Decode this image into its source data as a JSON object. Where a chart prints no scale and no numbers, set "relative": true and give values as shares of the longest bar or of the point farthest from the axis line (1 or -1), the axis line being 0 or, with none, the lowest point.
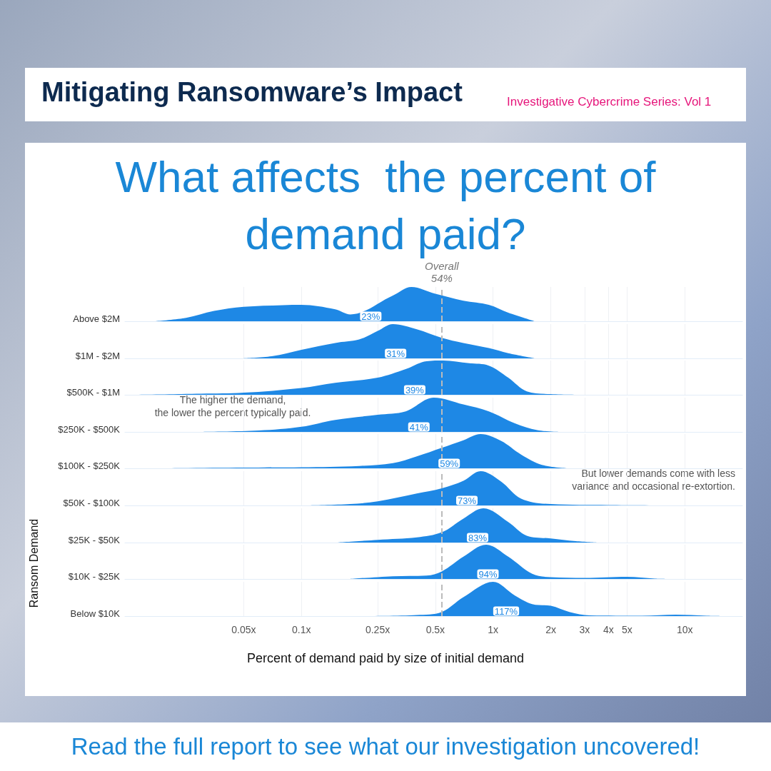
{
  "chart_data": [
    {
      "type": "area",
      "relative": true,
      "title": "Mitigating Ransomware’s Impact",
      "subtitle": "Investigative Cybercrime Series: Vol 1",
      "ylabel": "Above $2M",
      "xlim": [
        0.012,
        20
      ],
      "log": "x",
      "grid": "x",
      "tick_labels": false,
      "color": "#1e88e5",
      "x": [
        0.017,
        0.025,
        0.035,
        0.05,
        0.08,
        0.1,
        0.15,
        0.18,
        0.3,
        0.375,
        0.5,
        0.7,
        0.95,
        1.2,
        1.65
      ],
      "values": [
        0,
        0.1,
        0.3,
        0.42,
        0.47,
        0.48,
        0.35,
        0.2,
        0.75,
        1,
        0.8,
        0.6,
        0.48,
        0.25,
        0
      ],
      "ref_lines": [
        {
          "axis": "x",
          "value": 0.54,
          "label": "Overall\n54%",
          "color": "#bbbbbb",
          "line_style": "dashed"
        }
      ],
      "annotations": [
        "What affects  the percent of demand paid?",
        {
          "text": "23%",
          "x": 0.23,
          "y": 0
        }
      ],
      "xticks": [
        {
          "value": 0.05,
          "label": null
        },
        {
          "value": 0.1,
          "label": null
        },
        {
          "value": 0.25,
          "label": null
        },
        {
          "value": 0.5,
          "label": null
        },
        {
          "value": 1,
          "label": null
        },
        {
          "value": 2,
          "label": null
        },
        {
          "value": 3,
          "label": null
        },
        {
          "value": 4,
          "label": null
        },
        {
          "value": 5,
          "label": null
        },
        {
          "value": 10,
          "label": null
        }
      ]
    },
    {
      "type": "area",
      "relative": true,
      "ylabel": "$1M - $2M",
      "xlim": [
        0.012,
        20
      ],
      "log": "x",
      "grid": "x",
      "tick_labels": false,
      "color": "#1e88e5",
      "x": [
        0.05,
        0.07,
        0.1,
        0.15,
        0.2,
        0.25,
        0.3,
        0.4,
        0.54,
        0.7,
        0.95,
        1.2,
        1.65
      ],
      "values": [
        0,
        0.06,
        0.25,
        0.45,
        0.55,
        0.8,
        1,
        0.85,
        0.6,
        0.45,
        0.3,
        0.15,
        0
      ],
      "ref_lines": [
        {
          "axis": "x",
          "value": 0.54,
          "color": "#bbbbbb",
          "line_style": "dashed"
        }
      ],
      "annotations": [
        {
          "text": "31%",
          "x": 0.31,
          "y": 0
        }
      ],
      "xticks": [
        {
          "value": 0.05,
          "label": null
        },
        {
          "value": 0.1,
          "label": null
        },
        {
          "value": 0.25,
          "label": null
        },
        {
          "value": 0.5,
          "label": null
        },
        {
          "value": 1,
          "label": null
        },
        {
          "value": 2,
          "label": null
        },
        {
          "value": 3,
          "label": null
        },
        {
          "value": 4,
          "label": null
        },
        {
          "value": 5,
          "label": null
        },
        {
          "value": 10,
          "label": null
        }
      ]
    },
    {
      "type": "area",
      "relative": true,
      "ylabel": "$500K - $1M",
      "xlim": [
        0.012,
        20
      ],
      "log": "x",
      "grid": "x",
      "tick_labels": false,
      "color": "#1e88e5",
      "x": [
        0.013,
        0.03,
        0.05,
        0.1,
        0.15,
        0.25,
        0.35,
        0.45,
        0.55,
        0.75,
        0.95,
        1.2,
        1.5,
        2,
        3
      ],
      "values": [
        0,
        0.03,
        0.06,
        0.2,
        0.35,
        0.5,
        0.75,
        0.98,
        1,
        0.92,
        0.85,
        0.5,
        0.1,
        0.02,
        0
      ],
      "ref_lines": [
        {
          "axis": "x",
          "value": 0.54,
          "color": "#bbbbbb",
          "line_style": "dashed"
        }
      ],
      "annotations": [
        {
          "text": "39%",
          "x": 0.39,
          "y": 0
        }
      ],
      "xticks": [
        {
          "value": 0.05,
          "label": null
        },
        {
          "value": 0.1,
          "label": null
        },
        {
          "value": 0.25,
          "label": null
        },
        {
          "value": 0.5,
          "label": null
        },
        {
          "value": 1,
          "label": null
        },
        {
          "value": 2,
          "label": null
        },
        {
          "value": 3,
          "label": null
        },
        {
          "value": 4,
          "label": null
        },
        {
          "value": 5,
          "label": null
        },
        {
          "value": 10,
          "label": null
        }
      ]
    },
    {
      "type": "area",
      "relative": true,
      "ylabel": "$250K - $500K",
      "xlim": [
        0.012,
        20
      ],
      "log": "x",
      "grid": "x",
      "tick_labels": false,
      "color": "#1e88e5",
      "x": [
        0.03,
        0.06,
        0.1,
        0.15,
        0.25,
        0.35,
        0.49,
        0.7,
        0.95,
        1.3,
        1.7,
        2.2
      ],
      "values": [
        0,
        0.04,
        0.15,
        0.35,
        0.5,
        0.6,
        1,
        0.8,
        0.6,
        0.25,
        0.05,
        0
      ],
      "ref_lines": [
        {
          "axis": "x",
          "value": 0.54,
          "color": "#bbbbbb",
          "line_style": "dashed"
        }
      ],
      "annotations": [
        "The higher the demand,\nthe lower the percent typically paid.",
        {
          "text": "41%",
          "x": 0.41,
          "y": 0
        }
      ],
      "xticks": [
        {
          "value": 0.05,
          "label": null
        },
        {
          "value": 0.1,
          "label": null
        },
        {
          "value": 0.25,
          "label": null
        },
        {
          "value": 0.5,
          "label": null
        },
        {
          "value": 1,
          "label": null
        },
        {
          "value": 2,
          "label": null
        },
        {
          "value": 3,
          "label": null
        },
        {
          "value": 4,
          "label": null
        },
        {
          "value": 5,
          "label": null
        },
        {
          "value": 10,
          "label": null
        }
      ]
    },
    {
      "type": "area",
      "relative": true,
      "ylabel": "$100K - $250K",
      "xlim": [
        0.012,
        20
      ],
      "log": "x",
      "grid": "x",
      "tick_labels": false,
      "color": "#1e88e5",
      "x": [
        0.019,
        0.05,
        0.1,
        0.2,
        0.3,
        0.4,
        0.54,
        0.7,
        0.86,
        1.1,
        1.4,
        1.8,
        2.5
      ],
      "values": [
        0,
        0.02,
        0.03,
        0.07,
        0.15,
        0.35,
        0.6,
        0.82,
        1,
        0.8,
        0.4,
        0.1,
        0
      ],
      "ref_lines": [
        {
          "axis": "x",
          "value": 0.54,
          "color": "#bbbbbb",
          "line_style": "dashed"
        }
      ],
      "annotations": [
        {
          "text": "59%",
          "x": 0.59,
          "y": 0
        }
      ],
      "xticks": [
        {
          "value": 0.05,
          "label": null
        },
        {
          "value": 0.1,
          "label": null
        },
        {
          "value": 0.25,
          "label": null
        },
        {
          "value": 0.5,
          "label": null
        },
        {
          "value": 1,
          "label": null
        },
        {
          "value": 2,
          "label": null
        },
        {
          "value": 3,
          "label": null
        },
        {
          "value": 4,
          "label": null
        },
        {
          "value": 5,
          "label": null
        },
        {
          "value": 10,
          "label": null
        }
      ]
    },
    {
      "type": "area",
      "relative": true,
      "ylabel": "$50K - $100K",
      "xlim": [
        0.012,
        20
      ],
      "log": "x",
      "grid": "x",
      "tick_labels": false,
      "color": "#1e88e5",
      "x": [
        0.11,
        0.18,
        0.25,
        0.4,
        0.54,
        0.7,
        0.86,
        1.1,
        1.4,
        2,
        4,
        8
      ],
      "values": [
        0,
        0.04,
        0.12,
        0.35,
        0.5,
        0.72,
        1,
        0.7,
        0.2,
        0.04,
        0.01,
        0
      ],
      "ref_lines": [
        {
          "axis": "x",
          "value": 0.54,
          "color": "#bbbbbb",
          "line_style": "dashed"
        }
      ],
      "annotations": [
        "But lower demands come with less\nvariance and occasional re-extortion.",
        {
          "text": "73%",
          "x": 0.73,
          "y": 0
        }
      ],
      "xticks": [
        {
          "value": 0.05,
          "label": null
        },
        {
          "value": 0.1,
          "label": null
        },
        {
          "value": 0.25,
          "label": null
        },
        {
          "value": 0.5,
          "label": null
        },
        {
          "value": 1,
          "label": null
        },
        {
          "value": 2,
          "label": null
        },
        {
          "value": 3,
          "label": null
        },
        {
          "value": 4,
          "label": null
        },
        {
          "value": 5,
          "label": null
        },
        {
          "value": 10,
          "label": null
        }
      ]
    },
    {
      "type": "area",
      "relative": true,
      "ylabel": "$25K - $50K",
      "xlim": [
        0.012,
        20
      ],
      "log": "x",
      "grid": "x",
      "tick_labels": false,
      "color": "#1e88e5",
      "x": [
        0.15,
        0.25,
        0.4,
        0.54,
        0.7,
        0.89,
        1.2,
        1.5,
        2,
        2.7,
        3.5
      ],
      "values": [
        0,
        0.08,
        0.15,
        0.3,
        0.7,
        1,
        0.6,
        0.2,
        0.12,
        0.04,
        0
      ],
      "ref_lines": [
        {
          "axis": "x",
          "value": 0.54,
          "color": "#bbbbbb",
          "line_style": "dashed"
        }
      ],
      "annotations": [
        {
          "text": "83%",
          "x": 0.83,
          "y": 0
        }
      ],
      "xticks": [
        {
          "value": 0.05,
          "label": null
        },
        {
          "value": 0.1,
          "label": null
        },
        {
          "value": 0.25,
          "label": null
        },
        {
          "value": 0.5,
          "label": null
        },
        {
          "value": 1,
          "label": null
        },
        {
          "value": 2,
          "label": null
        },
        {
          "value": 3,
          "label": null
        },
        {
          "value": 4,
          "label": null
        },
        {
          "value": 5,
          "label": null
        },
        {
          "value": 10,
          "label": null
        }
      ]
    },
    {
      "type": "area",
      "relative": true,
      "ylabel": "$10K - $25K",
      "xlim": [
        0.012,
        20
      ],
      "log": "x",
      "grid": "x",
      "tick_labels": false,
      "color": "#1e88e5",
      "x": [
        0.18,
        0.3,
        0.45,
        0.54,
        0.7,
        0.92,
        1.2,
        1.6,
        2,
        3,
        5,
        7,
        8.5
      ],
      "values": [
        0,
        0.08,
        0.1,
        0.22,
        0.65,
        1,
        0.65,
        0.15,
        0.05,
        0.03,
        0.06,
        0.01,
        0
      ],
      "ref_lines": [
        {
          "axis": "x",
          "value": 0.54,
          "color": "#bbbbbb",
          "line_style": "dashed"
        }
      ],
      "annotations": [
        {
          "text": "94%",
          "x": 0.94,
          "y": 0
        }
      ],
      "xticks": [
        {
          "value": 0.05,
          "label": null
        },
        {
          "value": 0.1,
          "label": null
        },
        {
          "value": 0.25,
          "label": null
        },
        {
          "value": 0.5,
          "label": null
        },
        {
          "value": 1,
          "label": null
        },
        {
          "value": 2,
          "label": null
        },
        {
          "value": 3,
          "label": null
        },
        {
          "value": 4,
          "label": null
        },
        {
          "value": 5,
          "label": null
        },
        {
          "value": 10,
          "label": null
        }
      ]
    },
    {
      "type": "area",
      "relative": true,
      "ylabel": "Below $10K",
      "xlabel": "Percent of demand paid by size of initial demand",
      "xlim": [
        0.012,
        20
      ],
      "log": "x",
      "grid": "x",
      "tick_labels": "x",
      "color": "#1e88e5",
      "x": [
        0.22,
        0.4,
        0.54,
        0.7,
        1,
        1.3,
        1.6,
        2,
        2.5,
        3.2,
        6,
        9,
        13,
        16
      ],
      "values": [
        0,
        0.03,
        0.12,
        0.55,
        1,
        0.6,
        0.35,
        0.3,
        0.12,
        0.02,
        0.01,
        0.04,
        0.01,
        0
      ],
      "ref_lines": [
        {
          "axis": "x",
          "value": 0.54,
          "color": "#bbbbbb",
          "line_style": "dashed"
        }
      ],
      "annotations": [
        "Ransom Demand",
        "Read the full report to see what our investigation uncovered!",
        {
          "text": "117%",
          "x": 1.17,
          "y": 0
        }
      ],
      "xticks": [
        {
          "value": 0.05,
          "label": "0.05x"
        },
        {
          "value": 0.1,
          "label": "0.1x"
        },
        {
          "value": 0.25,
          "label": "0.25x"
        },
        {
          "value": 0.5,
          "label": "0.5x"
        },
        {
          "value": 1,
          "label": "1x"
        },
        {
          "value": 2,
          "label": "2x"
        },
        {
          "value": 3,
          "label": "3x"
        },
        {
          "value": 4,
          "label": "4x"
        },
        {
          "value": 5,
          "label": "5x"
        },
        {
          "value": 10,
          "label": "10x"
        }
      ]
    }
  ]
}
